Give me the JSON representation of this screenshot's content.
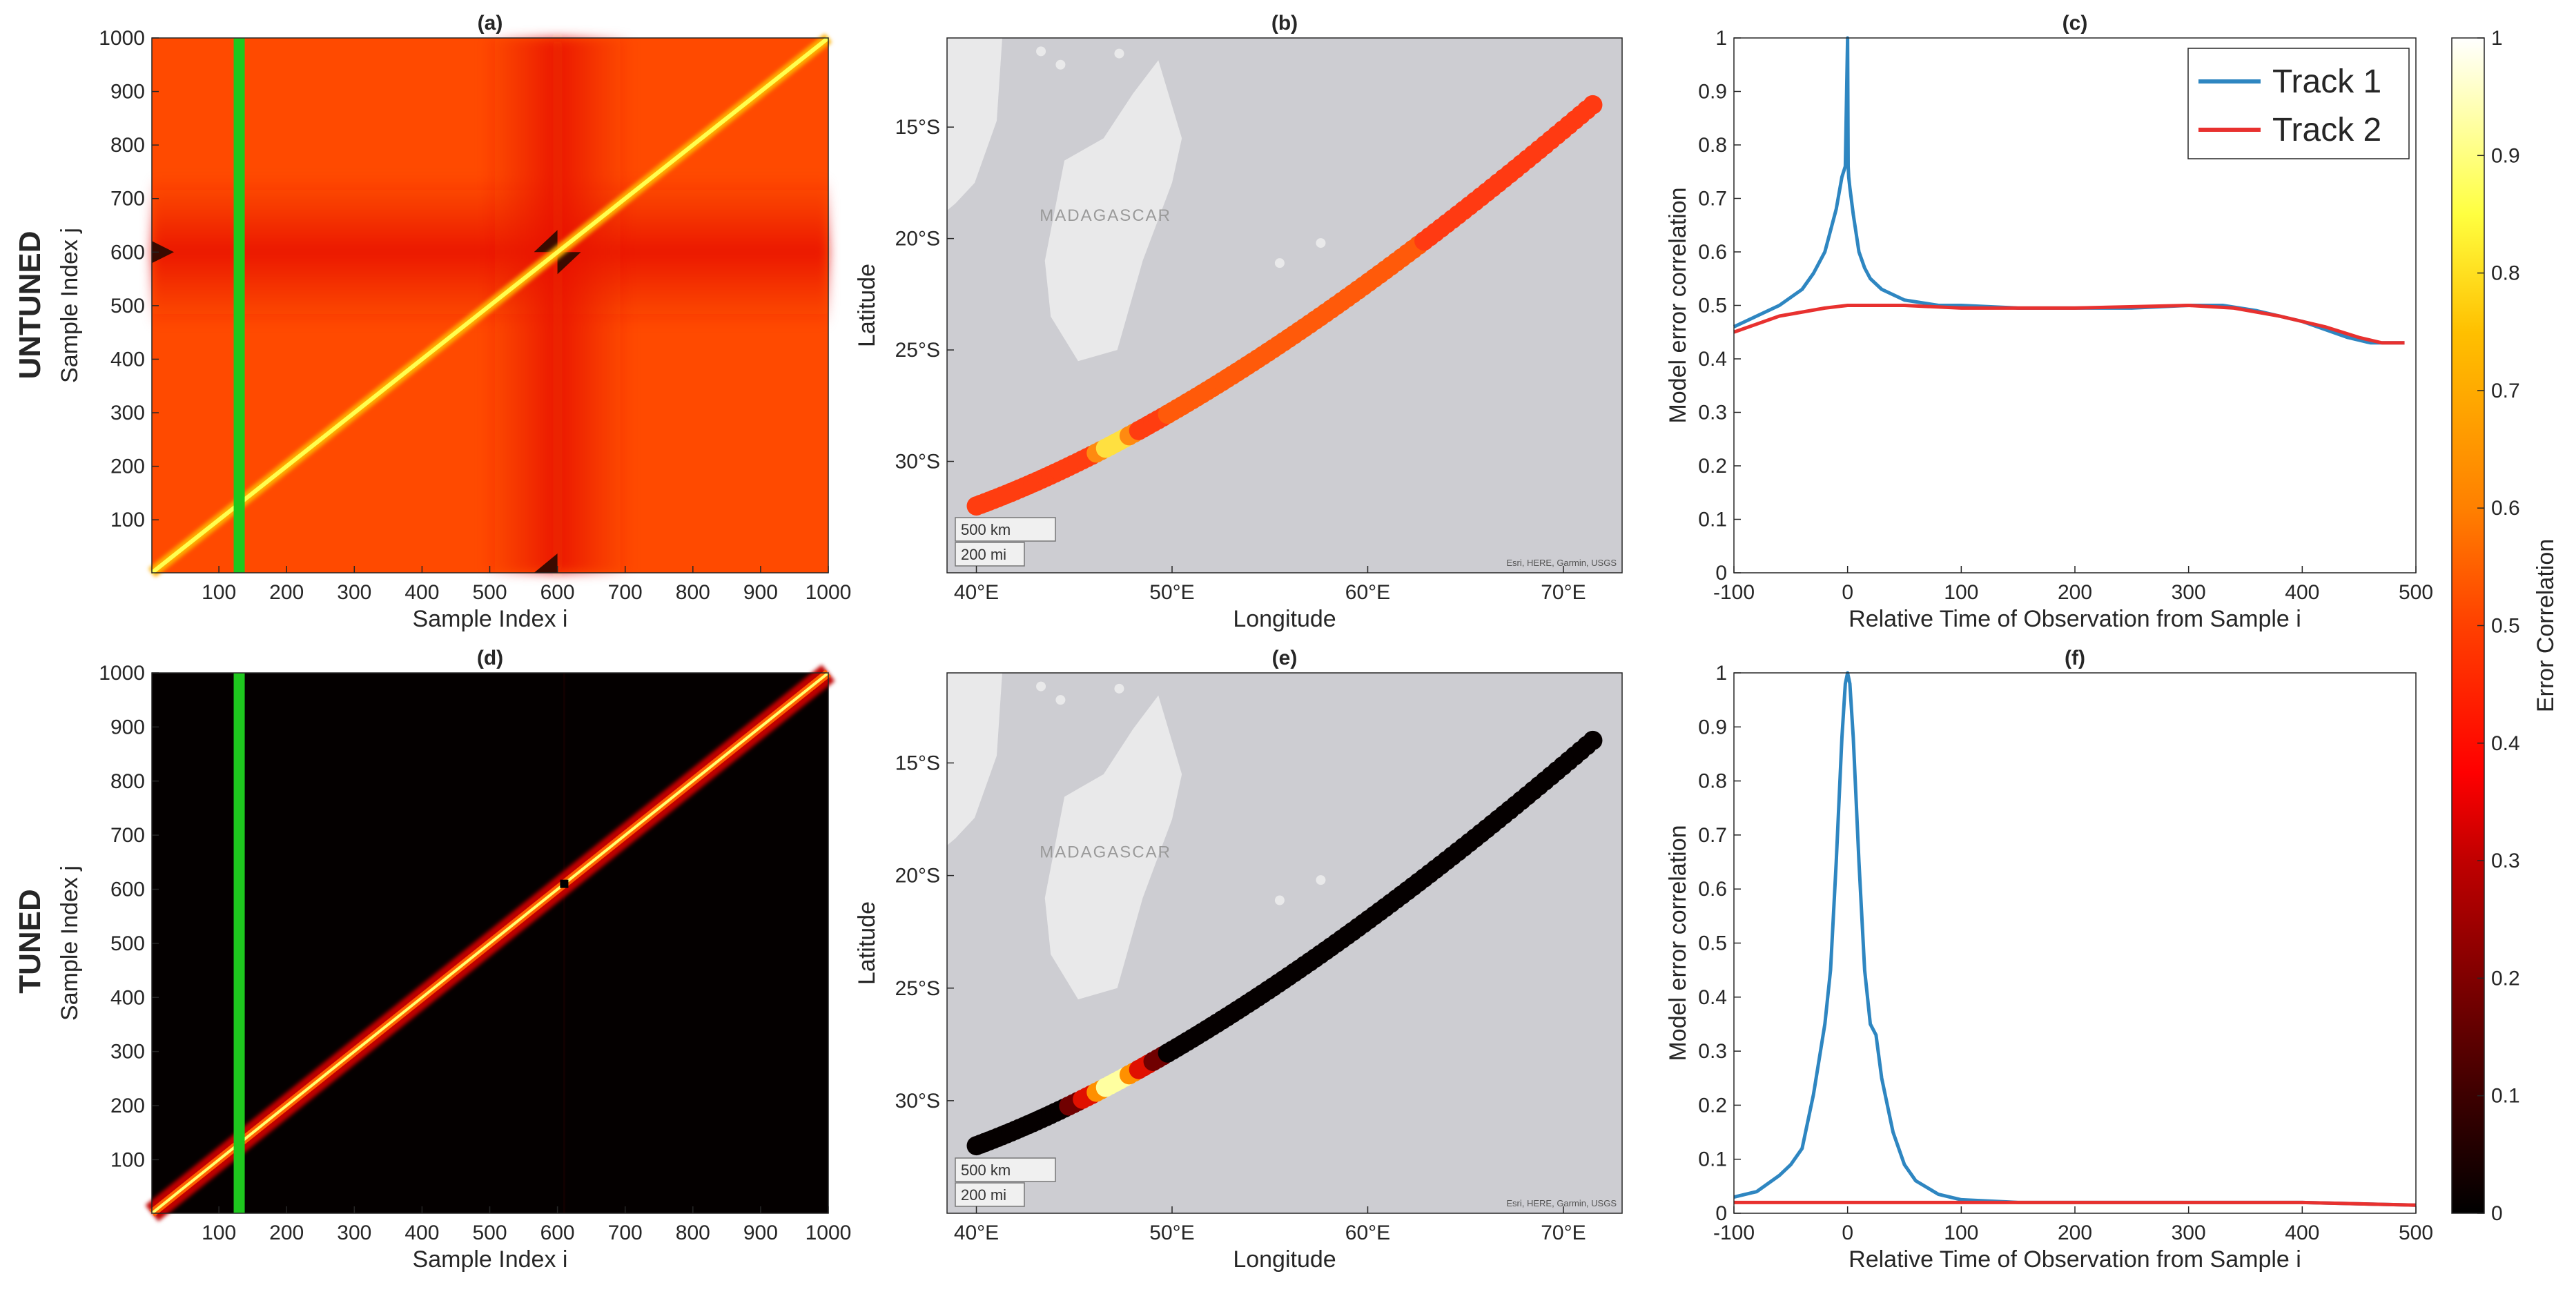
{
  "row_labels": {
    "top": "UNTUNED",
    "bottom": "TUNED"
  },
  "colorbar": {
    "label": "Error Correlation",
    "range": [
      0,
      1
    ],
    "ticks": [
      "0",
      "0.1",
      "0.2",
      "0.3",
      "0.4",
      "0.5",
      "0.6",
      "0.7",
      "0.8",
      "0.9",
      "1"
    ]
  },
  "chart_data": [
    {
      "id": "a",
      "type": "heatmap",
      "title": "(a)",
      "variant": "untuned",
      "xlabel": "Sample Index i",
      "ylabel": "Sample Index j",
      "xlim": [
        1,
        1000
      ],
      "ylim": [
        1,
        1000
      ],
      "xticks": [
        "100",
        "200",
        "300",
        "400",
        "500",
        "600",
        "700",
        "800",
        "900",
        "1000"
      ],
      "yticks": [
        "100",
        "200",
        "300",
        "400",
        "500",
        "600",
        "700",
        "800",
        "900",
        "1000"
      ],
      "highlight_column": 130,
      "diagonal_value": 0.8,
      "background_value": 0.5,
      "cross_center": 600
    },
    {
      "id": "b",
      "type": "scatter",
      "title": "(b)",
      "variant": "untuned",
      "xlabel": "Longitude",
      "ylabel": "Latitude",
      "xticks": [
        "40°E",
        "50°E",
        "60°E",
        "70°E"
      ],
      "xtick_values": [
        40,
        50,
        60,
        70
      ],
      "yticks": [
        "15°S",
        "20°S",
        "25°S",
        "30°S"
      ],
      "ytick_values": [
        -15,
        -20,
        -25,
        -30
      ],
      "xlim": [
        38.5,
        73
      ],
      "ylim": [
        -35,
        -11
      ],
      "track_start": [
        40,
        -32
      ],
      "track_end": [
        71.5,
        -14
      ],
      "highlight_point": [
        47,
        -29
      ],
      "map_label": "MADAGASCAR",
      "scale_km": "500 km",
      "scale_mi": "200 mi",
      "attribution": "Esri, HERE, Garmin, USGS"
    },
    {
      "id": "c",
      "type": "line",
      "title": "(c)",
      "xlabel": "Relative Time of Observation from Sample i",
      "ylabel": "Model error correlation",
      "xlim": [
        -100,
        500
      ],
      "ylim": [
        0,
        1
      ],
      "xticks": [
        "-100",
        "0",
        "100",
        "200",
        "300",
        "400",
        "500"
      ],
      "yticks": [
        "0",
        "0.1",
        "0.2",
        "0.3",
        "0.4",
        "0.5",
        "0.6",
        "0.7",
        "0.8",
        "0.9",
        "1"
      ],
      "legend_position": "top-right",
      "series": [
        {
          "name": "Track 1",
          "color": "#2e86c1",
          "x": [
            -100,
            -80,
            -60,
            -40,
            -30,
            -20,
            -10,
            -5,
            -2,
            0,
            0.5,
            1,
            2,
            5,
            10,
            15,
            20,
            30,
            50,
            80,
            100,
            150,
            200,
            250,
            300,
            330,
            360,
            400,
            440,
            460,
            470,
            490
          ],
          "y": [
            0.46,
            0.48,
            0.5,
            0.53,
            0.56,
            0.6,
            0.68,
            0.74,
            0.76,
            1.0,
            0.76,
            0.74,
            0.72,
            0.67,
            0.6,
            0.57,
            0.55,
            0.53,
            0.51,
            0.5,
            0.5,
            0.495,
            0.495,
            0.495,
            0.5,
            0.5,
            0.49,
            0.47,
            0.44,
            0.43,
            0.43,
            0.43
          ]
        },
        {
          "name": "Track 2",
          "color": "#e8312f",
          "x": [
            -100,
            -60,
            -20,
            0,
            50,
            100,
            200,
            300,
            340,
            380,
            420,
            450,
            470,
            490
          ],
          "y": [
            0.45,
            0.48,
            0.495,
            0.5,
            0.5,
            0.495,
            0.495,
            0.5,
            0.495,
            0.48,
            0.46,
            0.44,
            0.43,
            0.43
          ]
        }
      ]
    },
    {
      "id": "d",
      "type": "heatmap",
      "title": "(d)",
      "variant": "tuned",
      "xlabel": "Sample Index i",
      "ylabel": "Sample Index j",
      "xlim": [
        1,
        1000
      ],
      "ylim": [
        1,
        1000
      ],
      "xticks": [
        "100",
        "200",
        "300",
        "400",
        "500",
        "600",
        "700",
        "800",
        "900",
        "1000"
      ],
      "yticks": [
        "100",
        "200",
        "300",
        "400",
        "500",
        "600",
        "700",
        "800",
        "900",
        "1000"
      ],
      "highlight_column": 130,
      "diagonal_value": 1.0,
      "background_value": 0.0,
      "cross_center": 610
    },
    {
      "id": "e",
      "type": "scatter",
      "title": "(e)",
      "variant": "tuned",
      "xlabel": "Longitude",
      "ylabel": "Latitude",
      "xticks": [
        "40°E",
        "50°E",
        "60°E",
        "70°E"
      ],
      "xtick_values": [
        40,
        50,
        60,
        70
      ],
      "yticks": [
        "15°S",
        "20°S",
        "25°S",
        "30°S"
      ],
      "ytick_values": [
        -15,
        -20,
        -25,
        -30
      ],
      "xlim": [
        38.5,
        73
      ],
      "ylim": [
        -35,
        -11
      ],
      "track_start": [
        40,
        -32
      ],
      "track_end": [
        71.5,
        -14
      ],
      "highlight_point": [
        47,
        -29
      ],
      "map_label": "MADAGASCAR",
      "scale_km": "500 km",
      "scale_mi": "200 mi",
      "attribution": "Esri, HERE, Garmin, USGS"
    },
    {
      "id": "f",
      "type": "line",
      "title": "(f)",
      "xlabel": "Relative Time of Observation from Sample i",
      "ylabel": "Model error correlation",
      "xlim": [
        -100,
        500
      ],
      "ylim": [
        0,
        1
      ],
      "xticks": [
        "-100",
        "0",
        "100",
        "200",
        "300",
        "400",
        "500"
      ],
      "yticks": [
        "0",
        "0.1",
        "0.2",
        "0.3",
        "0.4",
        "0.5",
        "0.6",
        "0.7",
        "0.8",
        "0.9",
        "1"
      ],
      "series": [
        {
          "name": "Track 1",
          "color": "#2e86c1",
          "x": [
            -100,
            -80,
            -60,
            -50,
            -40,
            -30,
            -20,
            -15,
            -10,
            -5,
            -2,
            0,
            2,
            5,
            10,
            15,
            20,
            25,
            30,
            40,
            50,
            60,
            80,
            100,
            150,
            200,
            300,
            400,
            500
          ],
          "y": [
            0.03,
            0.04,
            0.07,
            0.09,
            0.12,
            0.22,
            0.35,
            0.45,
            0.65,
            0.88,
            0.98,
            1.0,
            0.98,
            0.88,
            0.65,
            0.45,
            0.35,
            0.33,
            0.25,
            0.15,
            0.09,
            0.06,
            0.035,
            0.025,
            0.02,
            0.02,
            0.02,
            0.02,
            0.015
          ]
        },
        {
          "name": "Track 2",
          "color": "#e8312f",
          "x": [
            -100,
            0,
            100,
            200,
            300,
            400,
            500
          ],
          "y": [
            0.02,
            0.02,
            0.02,
            0.02,
            0.02,
            0.02,
            0.015
          ]
        }
      ]
    }
  ]
}
